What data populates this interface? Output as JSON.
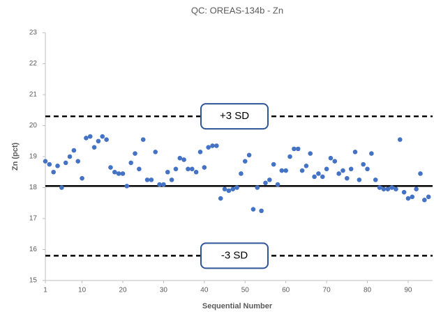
{
  "chart_data": {
    "type": "scatter",
    "title": "QC: OREAS-134b - Zn",
    "x_label": "Sequential Number",
    "y_label": "Zn (pct)",
    "x": [
      1,
      2,
      3,
      4,
      5,
      6,
      7,
      8,
      9,
      10,
      11,
      12,
      13,
      14,
      15,
      16,
      17,
      18,
      19,
      20,
      21,
      22,
      23,
      24,
      25,
      26,
      27,
      28,
      29,
      30,
      31,
      32,
      33,
      34,
      35,
      36,
      37,
      38,
      39,
      40,
      41,
      42,
      43,
      44,
      45,
      46,
      47,
      48,
      49,
      50,
      51,
      52,
      53,
      54,
      55,
      56,
      57,
      58,
      59,
      60,
      61,
      62,
      63,
      64,
      65,
      66,
      67,
      68,
      69,
      70,
      71,
      72,
      73,
      74,
      75,
      76,
      77,
      78,
      79,
      80,
      81,
      82,
      83,
      84,
      85,
      86,
      87,
      88,
      89,
      90,
      91,
      92,
      93,
      94,
      95
    ],
    "values": [
      18.85,
      18.75,
      18.5,
      18.7,
      18.0,
      18.8,
      19.0,
      19.2,
      18.85,
      18.3,
      19.6,
      19.65,
      19.3,
      19.5,
      19.65,
      19.55,
      18.65,
      18.5,
      18.45,
      18.45,
      18.05,
      18.8,
      19.1,
      18.6,
      19.55,
      18.25,
      18.25,
      19.15,
      18.1,
      18.1,
      18.5,
      18.25,
      18.6,
      18.95,
      18.9,
      18.6,
      18.6,
      18.5,
      19.15,
      18.65,
      19.3,
      19.35,
      19.35,
      17.65,
      17.95,
      17.9,
      17.95,
      18.0,
      18.45,
      18.85,
      19.05,
      17.3,
      18.0,
      17.25,
      18.15,
      18.25,
      18.75,
      18.1,
      18.55,
      18.55,
      19.0,
      19.25,
      19.25,
      18.55,
      18.7,
      19.1,
      18.35,
      18.45,
      18.35,
      18.6,
      18.95,
      18.85,
      18.45,
      18.55,
      18.3,
      18.6,
      19.15,
      18.25,
      18.75,
      18.6,
      19.1,
      18.25,
      18.0,
      17.95,
      17.95,
      18.0,
      17.95,
      19.55,
      17.85,
      17.65,
      17.7,
      17.95,
      18.45,
      17.6,
      17.7
    ],
    "color": "#4472c4",
    "xlim": [
      1,
      96
    ],
    "xticks": [
      1,
      10,
      20,
      30,
      40,
      50,
      60,
      70,
      80,
      90
    ],
    "ylim": [
      15,
      23
    ],
    "yticks": [
      15,
      16,
      17,
      18,
      19,
      20,
      21,
      22,
      23
    ],
    "reference_lines": [
      {
        "value": 20.3,
        "dashed": true,
        "label": "+3 SD"
      },
      {
        "value": 18.05,
        "dashed": false
      },
      {
        "value": 15.8,
        "dashed": true,
        "label": "-3 SD"
      }
    ]
  }
}
